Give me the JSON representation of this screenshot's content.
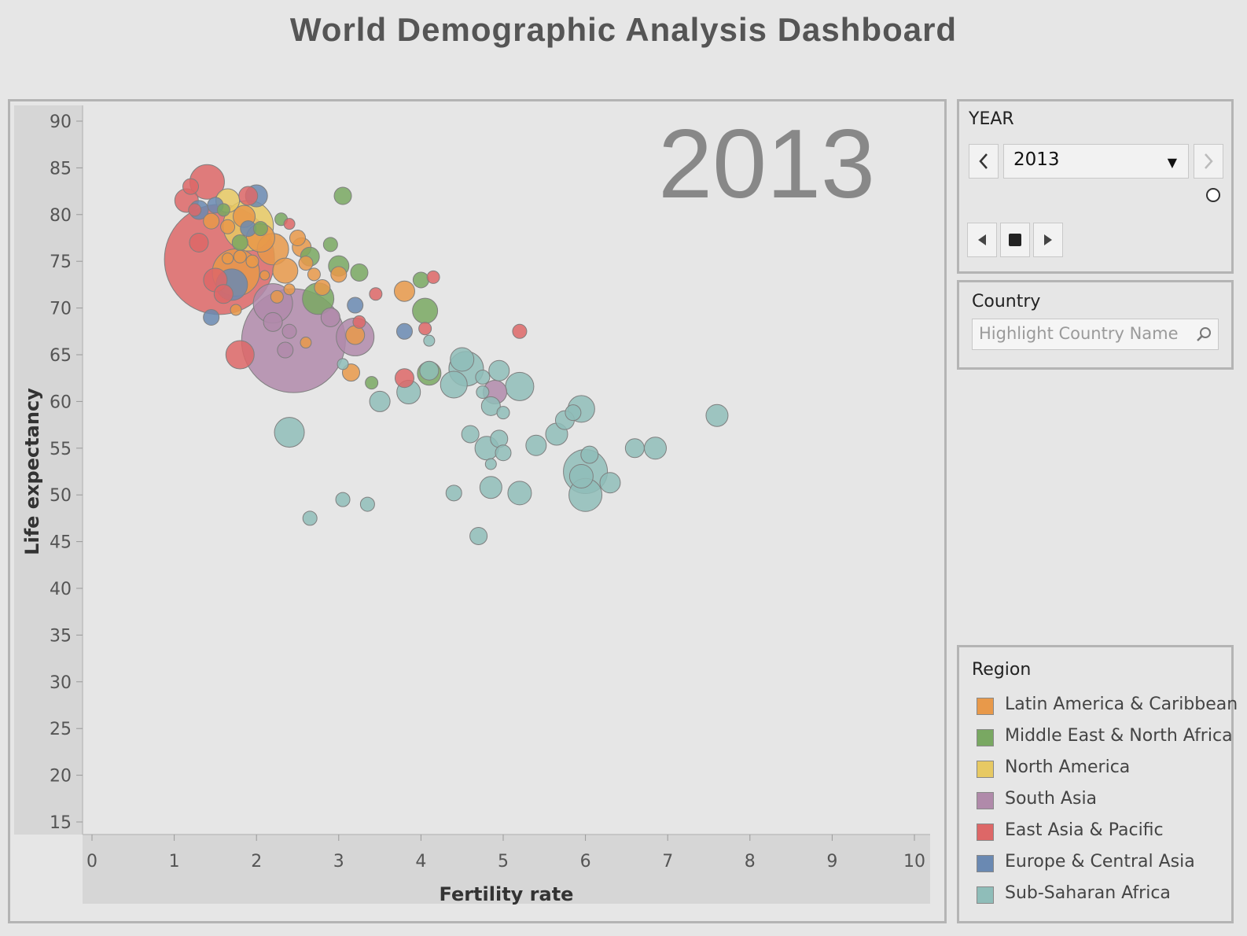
{
  "page": {
    "title": "World Demographic Analysis Dashboard"
  },
  "year_filter": {
    "label": "YEAR",
    "selected": "2013",
    "prev_icon": "chevron-left-icon",
    "next_icon": "chevron-right-icon",
    "playback": [
      "step-back-icon",
      "stop-icon",
      "play-icon"
    ]
  },
  "country_filter": {
    "label": "Country",
    "placeholder": "Highlight Country Name",
    "icon": "search-icon"
  },
  "legend": {
    "title": "Region",
    "items": [
      {
        "label": "Latin America & Caribbean",
        "color": "#e8994a"
      },
      {
        "label": "Middle East & North Africa",
        "color": "#79a862"
      },
      {
        "label": "North America",
        "color": "#e7c963"
      },
      {
        "label": "South Asia",
        "color": "#b08aaa"
      },
      {
        "label": "East Asia & Pacific",
        "color": "#dd6767"
      },
      {
        "label": "Europe & Central Asia",
        "color": "#6a89b2"
      },
      {
        "label": "Sub-Saharan Africa",
        "color": "#8fbdb9"
      }
    ]
  },
  "chart_data": {
    "type": "scatter",
    "bubble": true,
    "year_label": "2013",
    "xlabel": "Fertility rate",
    "ylabel": "Life expectancy",
    "xlim": [
      0,
      10
    ],
    "ylim": [
      15,
      90
    ],
    "xticks": [
      0,
      1,
      2,
      3,
      4,
      5,
      6,
      7,
      8,
      9,
      10
    ],
    "yticks": [
      90,
      85,
      80,
      75,
      70,
      65,
      60,
      55,
      50,
      45,
      40,
      35,
      30,
      25,
      20,
      15
    ],
    "series": [
      {
        "name": "Latin America & Caribbean",
        "color": "#e8994a",
        "points": [
          {
            "x": 1.45,
            "y": 79.3,
            "s": 10
          },
          {
            "x": 1.65,
            "y": 78.7,
            "s": 9
          },
          {
            "x": 1.75,
            "y": 73.8,
            "s": 30
          },
          {
            "x": 1.85,
            "y": 79.8,
            "s": 14
          },
          {
            "x": 1.8,
            "y": 75.5,
            "s": 8
          },
          {
            "x": 2.05,
            "y": 77.5,
            "s": 18
          },
          {
            "x": 2.2,
            "y": 76.3,
            "s": 20
          },
          {
            "x": 2.35,
            "y": 74.0,
            "s": 16
          },
          {
            "x": 2.5,
            "y": 77.5,
            "s": 10
          },
          {
            "x": 2.55,
            "y": 76.5,
            "s": 12
          },
          {
            "x": 2.6,
            "y": 74.8,
            "s": 9
          },
          {
            "x": 2.7,
            "y": 73.6,
            "s": 8
          },
          {
            "x": 2.25,
            "y": 71.2,
            "s": 8
          },
          {
            "x": 2.8,
            "y": 72.2,
            "s": 10
          },
          {
            "x": 3.0,
            "y": 73.6,
            "s": 10
          },
          {
            "x": 2.6,
            "y": 66.3,
            "s": 7
          },
          {
            "x": 3.2,
            "y": 67.1,
            "s": 12
          },
          {
            "x": 3.15,
            "y": 63.1,
            "s": 11
          },
          {
            "x": 3.8,
            "y": 71.8,
            "s": 13
          },
          {
            "x": 1.65,
            "y": 75.3,
            "s": 7
          },
          {
            "x": 1.75,
            "y": 69.8,
            "s": 7
          },
          {
            "x": 1.95,
            "y": 75.0,
            "s": 8
          },
          {
            "x": 2.4,
            "y": 72.0,
            "s": 7
          },
          {
            "x": 2.1,
            "y": 73.5,
            "s": 6
          }
        ]
      },
      {
        "name": "Middle East & North Africa",
        "color": "#79a862",
        "points": [
          {
            "x": 1.8,
            "y": 77.0,
            "s": 10
          },
          {
            "x": 2.05,
            "y": 78.5,
            "s": 9
          },
          {
            "x": 2.3,
            "y": 79.5,
            "s": 8
          },
          {
            "x": 2.65,
            "y": 75.5,
            "s": 12
          },
          {
            "x": 2.75,
            "y": 71.0,
            "s": 20
          },
          {
            "x": 2.9,
            "y": 76.8,
            "s": 9
          },
          {
            "x": 3.0,
            "y": 74.5,
            "s": 13
          },
          {
            "x": 3.25,
            "y": 73.8,
            "s": 11
          },
          {
            "x": 3.05,
            "y": 82.0,
            "s": 11
          },
          {
            "x": 4.0,
            "y": 73.0,
            "s": 10
          },
          {
            "x": 4.05,
            "y": 69.7,
            "s": 16
          },
          {
            "x": 4.1,
            "y": 63.0,
            "s": 15
          },
          {
            "x": 3.4,
            "y": 62.0,
            "s": 8
          },
          {
            "x": 1.6,
            "y": 80.5,
            "s": 8
          }
        ]
      },
      {
        "name": "North America",
        "color": "#e7c963",
        "points": [
          {
            "x": 1.65,
            "y": 81.5,
            "s": 15
          },
          {
            "x": 1.9,
            "y": 78.8,
            "s": 32
          }
        ]
      },
      {
        "name": "South Asia",
        "color": "#b08aaa",
        "points": [
          {
            "x": 2.45,
            "y": 66.5,
            "s": 66
          },
          {
            "x": 2.2,
            "y": 70.5,
            "s": 25
          },
          {
            "x": 3.2,
            "y": 66.9,
            "s": 24
          },
          {
            "x": 2.2,
            "y": 68.5,
            "s": 12
          },
          {
            "x": 2.35,
            "y": 65.5,
            "s": 10
          },
          {
            "x": 2.4,
            "y": 67.5,
            "s": 9
          },
          {
            "x": 4.9,
            "y": 61.0,
            "s": 15
          },
          {
            "x": 2.9,
            "y": 69.0,
            "s": 12
          }
        ]
      },
      {
        "name": "East Asia & Pacific",
        "color": "#dd6767",
        "points": [
          {
            "x": 1.55,
            "y": 75.2,
            "s": 70
          },
          {
            "x": 1.4,
            "y": 83.5,
            "s": 22
          },
          {
            "x": 1.2,
            "y": 83.0,
            "s": 10
          },
          {
            "x": 1.15,
            "y": 81.5,
            "s": 15
          },
          {
            "x": 1.25,
            "y": 80.5,
            "s": 8
          },
          {
            "x": 1.3,
            "y": 77.0,
            "s": 12
          },
          {
            "x": 1.9,
            "y": 82.0,
            "s": 12
          },
          {
            "x": 1.8,
            "y": 65.0,
            "s": 18
          },
          {
            "x": 2.4,
            "y": 79.0,
            "s": 7
          },
          {
            "x": 3.25,
            "y": 68.5,
            "s": 8
          },
          {
            "x": 3.45,
            "y": 71.5,
            "s": 8
          },
          {
            "x": 3.8,
            "y": 62.5,
            "s": 12
          },
          {
            "x": 4.05,
            "y": 67.8,
            "s": 8
          },
          {
            "x": 4.15,
            "y": 73.3,
            "s": 8
          },
          {
            "x": 5.2,
            "y": 67.5,
            "s": 9
          },
          {
            "x": 1.5,
            "y": 73.0,
            "s": 15
          },
          {
            "x": 1.6,
            "y": 71.5,
            "s": 12
          }
        ]
      },
      {
        "name": "Europe & Central Asia",
        "color": "#6a89b2",
        "points": [
          {
            "x": 1.45,
            "y": 69.0,
            "s": 10
          },
          {
            "x": 1.7,
            "y": 72.5,
            "s": 20
          },
          {
            "x": 2.0,
            "y": 82.0,
            "s": 14
          },
          {
            "x": 1.3,
            "y": 80.5,
            "s": 12
          },
          {
            "x": 1.5,
            "y": 81.0,
            "s": 10
          },
          {
            "x": 3.2,
            "y": 70.3,
            "s": 10
          },
          {
            "x": 3.8,
            "y": 67.5,
            "s": 10
          },
          {
            "x": 1.9,
            "y": 78.5,
            "s": 10
          }
        ]
      },
      {
        "name": "Sub-Saharan Africa",
        "color": "#8fbdb9",
        "points": [
          {
            "x": 2.4,
            "y": 56.7,
            "s": 19
          },
          {
            "x": 2.65,
            "y": 47.5,
            "s": 9
          },
          {
            "x": 3.05,
            "y": 49.5,
            "s": 9
          },
          {
            "x": 3.35,
            "y": 49.0,
            "s": 9
          },
          {
            "x": 3.5,
            "y": 60.0,
            "s": 13
          },
          {
            "x": 3.05,
            "y": 64.0,
            "s": 7
          },
          {
            "x": 3.85,
            "y": 61.0,
            "s": 15
          },
          {
            "x": 4.1,
            "y": 66.5,
            "s": 7
          },
          {
            "x": 4.1,
            "y": 63.3,
            "s": 12
          },
          {
            "x": 4.4,
            "y": 61.8,
            "s": 17
          },
          {
            "x": 4.5,
            "y": 64.5,
            "s": 15
          },
          {
            "x": 4.55,
            "y": 63.5,
            "s": 22
          },
          {
            "x": 4.6,
            "y": 56.5,
            "s": 11
          },
          {
            "x": 4.75,
            "y": 62.6,
            "s": 9
          },
          {
            "x": 4.75,
            "y": 61.0,
            "s": 8
          },
          {
            "x": 4.85,
            "y": 59.5,
            "s": 12
          },
          {
            "x": 4.95,
            "y": 63.3,
            "s": 13
          },
          {
            "x": 5.0,
            "y": 58.8,
            "s": 8
          },
          {
            "x": 4.8,
            "y": 55.0,
            "s": 15
          },
          {
            "x": 4.95,
            "y": 56.0,
            "s": 11
          },
          {
            "x": 5.0,
            "y": 54.5,
            "s": 10
          },
          {
            "x": 4.85,
            "y": 53.3,
            "s": 7
          },
          {
            "x": 4.85,
            "y": 50.8,
            "s": 14
          },
          {
            "x": 4.4,
            "y": 50.2,
            "s": 10
          },
          {
            "x": 5.2,
            "y": 61.6,
            "s": 18
          },
          {
            "x": 5.2,
            "y": 50.2,
            "s": 15
          },
          {
            "x": 5.4,
            "y": 55.3,
            "s": 13
          },
          {
            "x": 5.65,
            "y": 56.5,
            "s": 14
          },
          {
            "x": 5.75,
            "y": 58.0,
            "s": 12
          },
          {
            "x": 5.85,
            "y": 58.8,
            "s": 10
          },
          {
            "x": 5.95,
            "y": 59.2,
            "s": 17
          },
          {
            "x": 6.0,
            "y": 52.5,
            "s": 28
          },
          {
            "x": 5.95,
            "y": 52.0,
            "s": 15
          },
          {
            "x": 6.05,
            "y": 54.3,
            "s": 11
          },
          {
            "x": 6.3,
            "y": 51.3,
            "s": 13
          },
          {
            "x": 6.0,
            "y": 50.0,
            "s": 21
          },
          {
            "x": 6.6,
            "y": 55.0,
            "s": 12
          },
          {
            "x": 6.85,
            "y": 55.0,
            "s": 14
          },
          {
            "x": 7.6,
            "y": 58.5,
            "s": 14
          },
          {
            "x": 4.7,
            "y": 45.6,
            "s": 11
          }
        ]
      }
    ]
  }
}
